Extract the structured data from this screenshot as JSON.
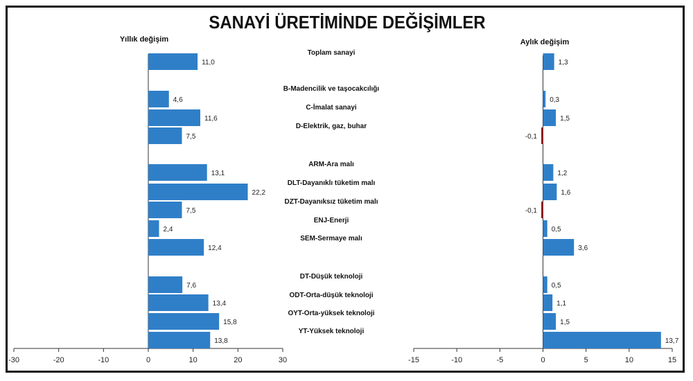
{
  "title": "SANAYİ ÜRETİMİNDE DEĞİŞİMLER",
  "chart_data": [
    {
      "type": "bar",
      "orientation": "horizontal",
      "subtitle": "Yıllık değişim",
      "categories": [
        "Toplam sanayi",
        "B-Madencilik ve taşocakcılığı",
        "C-İmalat sanayi",
        "D-Elektrik, gaz, buhar",
        "ARM-Ara malı",
        "DLT-Dayanıklı tüketim malı",
        "DZT-Dayanıksız tüketim malı",
        "ENJ-Enerji",
        "SEM-Sermaye malı",
        "DT-Düşük teknoloji",
        "ODT-Orta-düşük teknoloji",
        "OYT-Orta-yüksek teknoloji",
        "YT-Yüksek teknoloji"
      ],
      "values": [
        11.0,
        4.6,
        11.6,
        7.5,
        13.1,
        22.2,
        7.5,
        2.4,
        12.4,
        7.6,
        13.4,
        15.8,
        13.8
      ],
      "value_labels": [
        "11,0",
        "4,6",
        "11,6",
        "7,5",
        "13,1",
        "22,2",
        "7,5",
        "2,4",
        "12,4",
        "7,6",
        "13,4",
        "15,8",
        "13,8"
      ],
      "xlim": [
        -30,
        30
      ],
      "ticks": [
        -30,
        -20,
        -10,
        0,
        10,
        20,
        30
      ],
      "tick_labels": [
        "-30",
        "-20",
        "-10",
        "0",
        "10",
        "20",
        "30"
      ],
      "colors": {
        "positive": "#2f7fc8",
        "negative": "#9e1b1b"
      }
    },
    {
      "type": "bar",
      "orientation": "horizontal",
      "subtitle": "Aylık değişim",
      "categories": [
        "Toplam sanayi",
        "B-Madencilik ve taşocakcılığı",
        "C-İmalat sanayi",
        "D-Elektrik, gaz, buhar",
        "ARM-Ara malı",
        "DLT-Dayanıklı tüketim malı",
        "DZT-Dayanıksız tüketim malı",
        "ENJ-Enerji",
        "SEM-Sermaye malı",
        "DT-Düşük teknoloji",
        "ODT-Orta-düşük teknoloji",
        "OYT-Orta-yüksek teknoloji",
        "YT-Yüksek teknoloji"
      ],
      "values": [
        1.3,
        0.3,
        1.5,
        -0.1,
        1.2,
        1.6,
        -0.1,
        0.5,
        3.6,
        0.5,
        1.1,
        1.5,
        13.7
      ],
      "value_labels": [
        "1,3",
        "0,3",
        "1,5",
        "-0,1",
        "1,2",
        "1,6",
        "-0,1",
        "0,5",
        "3,6",
        "0,5",
        "1,1",
        "1,5",
        "13,7"
      ],
      "xlim": [
        -15,
        15
      ],
      "ticks": [
        -15,
        -10,
        -5,
        0,
        5,
        10,
        15
      ],
      "tick_labels": [
        "-15",
        "-10",
        "-5",
        "0",
        "5",
        "10",
        "15"
      ],
      "colors": {
        "positive": "#2f7fc8",
        "negative": "#9e1b1b"
      }
    }
  ]
}
